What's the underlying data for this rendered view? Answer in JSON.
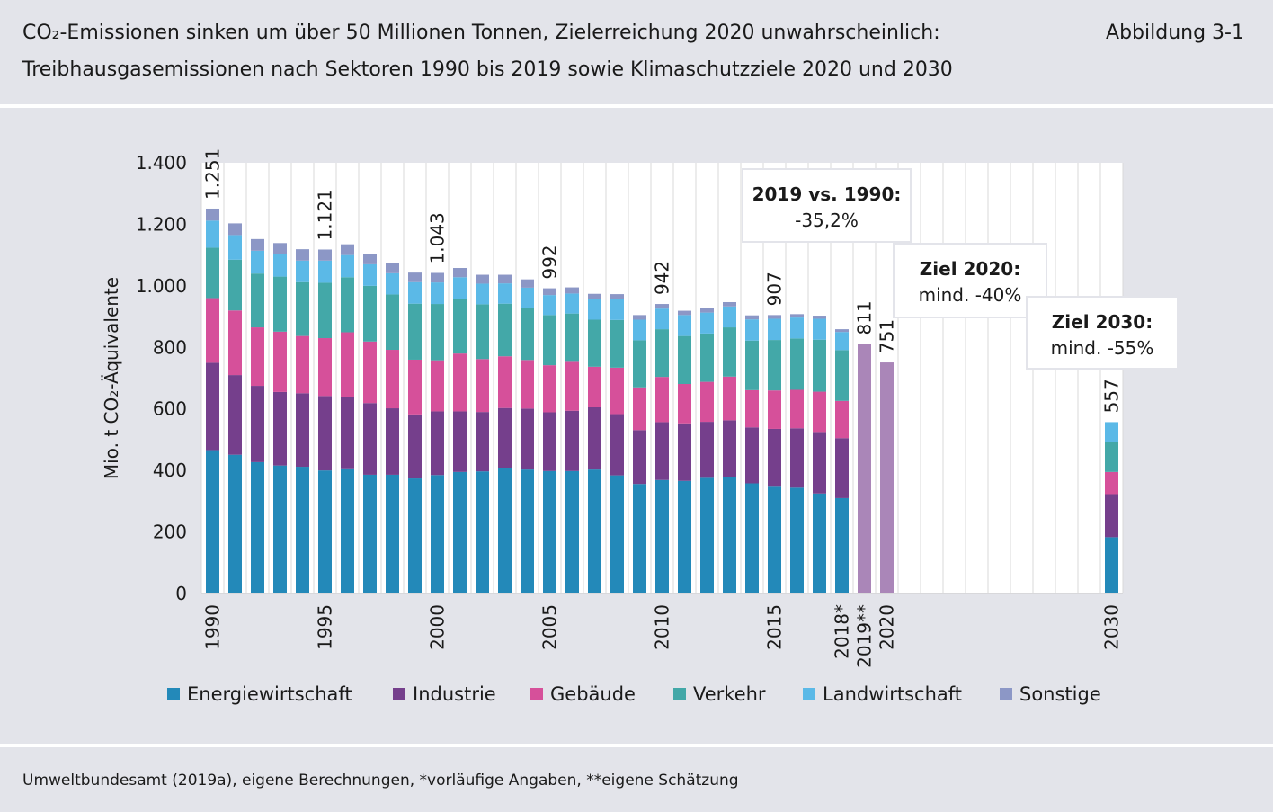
{
  "header": {
    "title_line1": "CO₂-Emissionen sinken um über 50 Millionen Tonnen, Zielerreichung 2020 unwahrscheinlich:",
    "title_line2": "Treibhausgasemissionen nach Sektoren 1990 bis 2019 sowie Klimaschutzziele 2020 und 2030",
    "figure_label": "Abbildung 3-1"
  },
  "footer": {
    "source": "Umweltbundesamt (2019a), eigene Berechnungen, *vorläufige Angaben, **eigene Schätzung"
  },
  "chart_data": {
    "type": "bar",
    "stacked": true,
    "ylabel": "Mio. t CO₂-Äquivalente",
    "ylim": [
      0,
      1400
    ],
    "yticks": [
      0,
      200,
      400,
      600,
      800,
      1000,
      1200,
      1400
    ],
    "ytick_labels": [
      "0",
      "200",
      "400",
      "600",
      "800",
      "1.000",
      "1.200",
      "1.400"
    ],
    "grid": "vertical",
    "legend_position": "bottom",
    "x_slots_range": [
      1990,
      2030
    ],
    "x_tick_labels": [
      {
        "x": 1990,
        "label": "1990"
      },
      {
        "x": 1995,
        "label": "1995"
      },
      {
        "x": 2000,
        "label": "2000"
      },
      {
        "x": 2005,
        "label": "2005"
      },
      {
        "x": 2010,
        "label": "2010"
      },
      {
        "x": 2015,
        "label": "2015"
      },
      {
        "x": 2018,
        "label": "2018*"
      },
      {
        "x": 2019,
        "label": "2019**"
      },
      {
        "x": 2020,
        "label": "2020"
      },
      {
        "x": 2030,
        "label": "2030"
      }
    ],
    "series": [
      {
        "name": "Energiewirtschaft",
        "color": "#2389b9"
      },
      {
        "name": "Industrie",
        "color": "#753f8c"
      },
      {
        "name": "Gebäude",
        "color": "#d6509a"
      },
      {
        "name": "Verkehr",
        "color": "#43a8a8"
      },
      {
        "name": "Landwirtschaft",
        "color": "#5bb9e7"
      },
      {
        "name": "Sonstige",
        "color": "#8c97c6"
      }
    ],
    "stacked_years": [
      1990,
      1991,
      1992,
      1993,
      1994,
      1995,
      1996,
      1997,
      1998,
      1999,
      2000,
      2001,
      2002,
      2003,
      2004,
      2005,
      2006,
      2007,
      2008,
      2009,
      2010,
      2011,
      2012,
      2013,
      2014,
      2015,
      2016,
      2017,
      2018
    ],
    "stacked_values": [
      [
        466,
        284,
        210,
        164,
        88,
        39
      ],
      [
        451,
        259,
        210,
        165,
        80,
        38
      ],
      [
        427,
        248,
        190,
        175,
        74,
        38
      ],
      [
        416,
        239,
        196,
        179,
        72,
        37
      ],
      [
        412,
        239,
        186,
        175,
        70,
        37
      ],
      [
        400,
        242,
        188,
        180,
        72,
        36
      ],
      [
        404,
        235,
        210,
        179,
        72,
        35
      ],
      [
        386,
        233,
        200,
        181,
        70,
        33
      ],
      [
        386,
        216,
        190,
        180,
        69,
        33
      ],
      [
        374,
        208,
        178,
        182,
        70,
        31
      ],
      [
        385,
        207,
        166,
        183,
        70,
        31
      ],
      [
        395,
        197,
        188,
        178,
        70,
        30
      ],
      [
        397,
        193,
        172,
        178,
        67,
        29
      ],
      [
        407,
        196,
        168,
        171,
        66,
        28
      ],
      [
        403,
        198,
        158,
        170,
        65,
        27
      ],
      [
        398,
        191,
        153,
        163,
        65,
        22
      ],
      [
        398,
        196,
        159,
        157,
        65,
        20
      ],
      [
        403,
        202,
        132,
        153,
        67,
        17
      ],
      [
        384,
        199,
        151,
        155,
        68,
        16
      ],
      [
        356,
        175,
        139,
        153,
        67,
        15
      ],
      [
        369,
        188,
        147,
        155,
        67,
        15
      ],
      [
        366,
        187,
        128,
        156,
        68,
        14
      ],
      [
        376,
        182,
        130,
        157,
        68,
        14
      ],
      [
        379,
        184,
        142,
        160,
        68,
        14
      ],
      [
        358,
        182,
        121,
        161,
        69,
        13
      ],
      [
        347,
        188,
        125,
        164,
        69,
        12
      ],
      [
        344,
        193,
        125,
        167,
        68,
        11
      ],
      [
        325,
        200,
        131,
        169,
        68,
        10
      ],
      [
        310,
        195,
        121,
        165,
        59,
        9
      ]
    ],
    "single_bars": [
      {
        "year": 2019,
        "value": 811,
        "color": "#aa86b8"
      },
      {
        "year": 2020,
        "value": 751,
        "color": "#aa86b8"
      }
    ],
    "target_2030": {
      "year": 2030,
      "values": [
        183,
        140,
        72,
        98,
        64
      ],
      "total": 557
    },
    "value_labels": [
      {
        "year": 1990,
        "text": "1.251"
      },
      {
        "year": 1995,
        "text": "1.121"
      },
      {
        "year": 2000,
        "text": "1.043"
      },
      {
        "year": 2005,
        "text": "992"
      },
      {
        "year": 2010,
        "text": "942"
      },
      {
        "year": 2015,
        "text": "907"
      },
      {
        "year": 2019,
        "text": "811"
      },
      {
        "year": 2020,
        "text": "751"
      },
      {
        "year": 2030,
        "text": "557"
      }
    ],
    "annotations": [
      {
        "bold": "2019 vs. 1990:",
        "text": "-35,2%"
      },
      {
        "bold": "Ziel 2020:",
        "text": "mind. -40%"
      },
      {
        "bold": "Ziel 2030:",
        "text": "mind. -55%"
      }
    ]
  }
}
